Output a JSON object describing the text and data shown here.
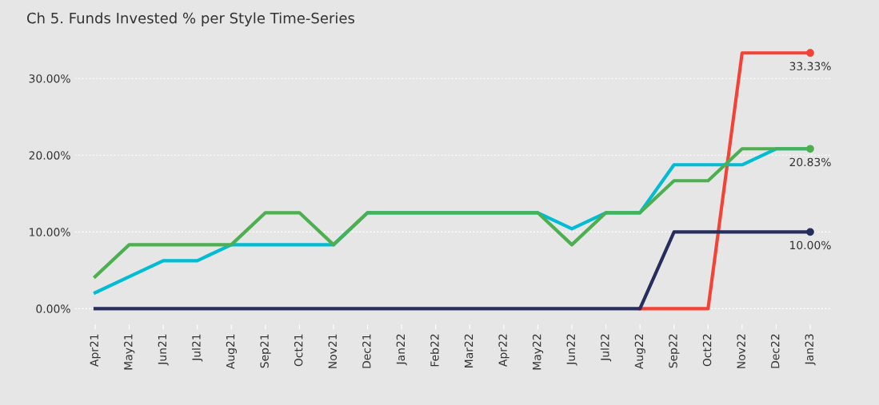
{
  "chart_data": {
    "type": "line",
    "title": "Ch 5. Funds Invested % per Style Time-Series",
    "categories": [
      "Apr21",
      "May21",
      "Jun21",
      "Jul21",
      "Aug21",
      "Sep21",
      "Oct21",
      "Nov21",
      "Dec21",
      "Jan22",
      "Feb22",
      "Mar22",
      "Apr22",
      "May22",
      "Jun22",
      "Jul22",
      "Aug22",
      "Sep22",
      "Oct22",
      "Nov22",
      "Dec22",
      "Jan23"
    ],
    "series": [
      {
        "color": "#f44336",
        "values": [
          null,
          null,
          null,
          null,
          null,
          null,
          null,
          null,
          null,
          null,
          null,
          null,
          null,
          null,
          null,
          null,
          0,
          0,
          0,
          33.33,
          33.33,
          33.33
        ],
        "value_labels": [
          null,
          null,
          null,
          null,
          null,
          null,
          null,
          null,
          null,
          null,
          null,
          null,
          null,
          null,
          null,
          null,
          null,
          null,
          null,
          null,
          null,
          "33.33%"
        ]
      },
      {
        "color": "#252e5c",
        "values": [
          0,
          0,
          0,
          0,
          0,
          0,
          0,
          0,
          0,
          0,
          0,
          0,
          0,
          0,
          0,
          0,
          0,
          10,
          10,
          10,
          10,
          10
        ],
        "value_labels": [
          null,
          null,
          null,
          null,
          null,
          null,
          null,
          null,
          null,
          null,
          null,
          null,
          null,
          null,
          null,
          null,
          null,
          null,
          null,
          null,
          null,
          "10.00%"
        ]
      },
      {
        "color": "#00bcd4",
        "values": [
          2.08,
          4.17,
          6.25,
          6.25,
          8.33,
          8.33,
          8.33,
          8.33,
          12.5,
          12.5,
          12.5,
          12.5,
          12.5,
          12.5,
          10.42,
          12.5,
          12.5,
          18.75,
          18.75,
          18.75,
          20.83,
          20.83
        ]
      },
      {
        "color": "#4caf50",
        "values": [
          4.17,
          8.33,
          8.33,
          8.33,
          8.33,
          12.5,
          12.5,
          8.33,
          12.5,
          12.5,
          12.5,
          12.5,
          12.5,
          12.5,
          8.33,
          12.5,
          12.5,
          16.67,
          16.67,
          20.83,
          20.83,
          20.83
        ],
        "value_labels": [
          null,
          null,
          null,
          null,
          null,
          null,
          null,
          null,
          null,
          null,
          null,
          null,
          null,
          null,
          null,
          null,
          null,
          null,
          null,
          null,
          null,
          "20.83%"
        ]
      }
    ],
    "ylim": [
      -2,
      36
    ],
    "yticks": [
      {
        "value": 0,
        "label": "0.00%"
      },
      {
        "value": 10,
        "label": "10.00%"
      },
      {
        "value": 20,
        "label": "20.00%"
      },
      {
        "value": 30,
        "label": "30.00%"
      }
    ],
    "grid": "y",
    "legend": false,
    "line_style": "solid"
  }
}
